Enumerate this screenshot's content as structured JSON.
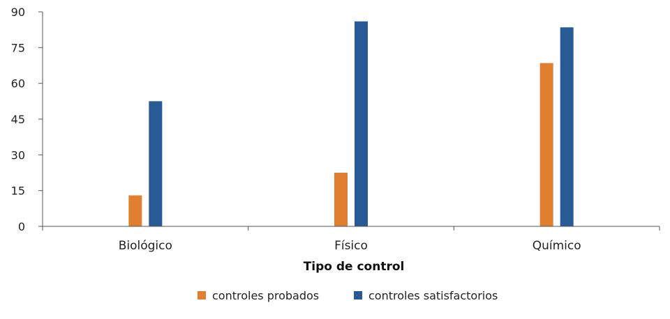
{
  "chart_data": {
    "type": "bar",
    "categories": [
      "Biológico",
      "Físico",
      "Químico"
    ],
    "series": [
      {
        "name": "controles probados",
        "values": [
          13,
          22.5,
          68.5
        ],
        "color": "#e07f30"
      },
      {
        "name": "controles satisfactorios",
        "values": [
          52.5,
          86,
          83.5
        ],
        "color": "#285a96"
      }
    ],
    "xlabel": "Tipo de control",
    "ylabel": "",
    "ylim": [
      0,
      90
    ],
    "yticks": [
      0,
      15,
      30,
      45,
      60,
      75,
      90
    ],
    "grid": false,
    "legend_position": "bottom"
  }
}
